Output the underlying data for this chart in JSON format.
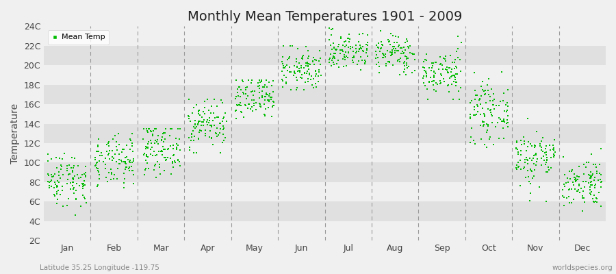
{
  "title": "Monthly Mean Temperatures 1901 - 2009",
  "ylabel": "Temperature",
  "subtitle_left": "Latitude 35.25 Longitude -119.75",
  "subtitle_right": "worldspecies.org",
  "dot_color": "#00bb00",
  "background_color": "#f0f0f0",
  "stripe_light": "#f0f0f0",
  "stripe_dark": "#e0e0e0",
  "vline_color": "#999999",
  "legend_label": "Mean Temp",
  "ytick_labels": [
    "2C",
    "4C",
    "6C",
    "8C",
    "10C",
    "12C",
    "14C",
    "16C",
    "18C",
    "20C",
    "22C",
    "24C"
  ],
  "ytick_values": [
    2,
    4,
    6,
    8,
    10,
    12,
    14,
    16,
    18,
    20,
    22,
    24
  ],
  "ylim": [
    2,
    24
  ],
  "months": [
    "Jan",
    "Feb",
    "Mar",
    "Apr",
    "May",
    "Jun",
    "Jul",
    "Aug",
    "Sep",
    "Oct",
    "Nov",
    "Dec"
  ],
  "month_means": [
    8.3,
    10.0,
    11.5,
    14.0,
    16.5,
    19.5,
    21.5,
    21.2,
    19.2,
    15.2,
    10.5,
    8.0
  ],
  "month_stds": [
    1.4,
    1.3,
    1.3,
    1.3,
    1.2,
    1.1,
    1.0,
    1.0,
    1.2,
    1.5,
    1.5,
    1.3
  ],
  "month_mins": [
    3.5,
    6.0,
    7.0,
    11.0,
    14.0,
    17.5,
    19.5,
    19.0,
    16.5,
    11.5,
    6.0,
    5.0
  ],
  "month_maxs": [
    11.0,
    13.0,
    13.5,
    16.5,
    18.5,
    22.0,
    24.5,
    23.5,
    23.0,
    20.5,
    14.5,
    12.5
  ],
  "n_years": 109,
  "title_fontsize": 14,
  "axis_label_fontsize": 10,
  "tick_fontsize": 9,
  "dot_size": 4
}
